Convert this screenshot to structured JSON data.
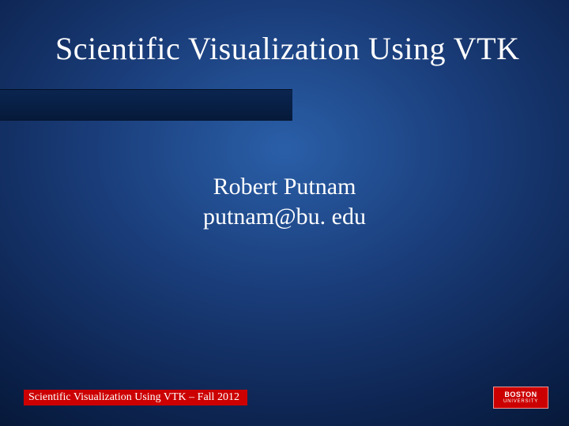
{
  "slide": {
    "title": "Scientific Visualization Using VTK",
    "author": "Robert Putnam",
    "email": "putnam@bu. edu",
    "footer": "Scientific Visualization Using VTK – Fall 2012",
    "logo_top": "BOSTON",
    "logo_bottom": "UNIVERSITY"
  },
  "style": {
    "background_gradient_center": "#2a5fa8",
    "background_gradient_outer": "#020b20",
    "title_color": "#ffffff",
    "title_fontsize": 40,
    "body_color": "#ffffff",
    "body_fontsize": 30,
    "footer_bg": "#cc0000",
    "footer_color": "#ffffff",
    "footer_fontsize": 14,
    "logo_bg": "#cc0000",
    "title_bar_color": "#061a3a",
    "title_bar_width": 370,
    "font_family": "Times New Roman"
  }
}
